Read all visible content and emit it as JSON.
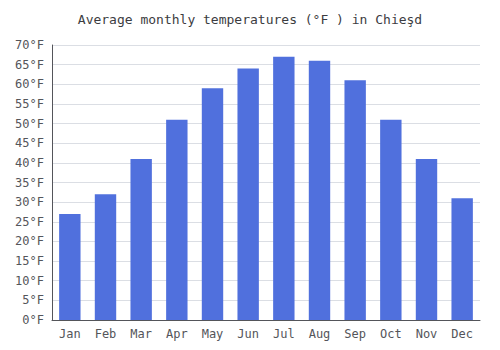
{
  "chart_data": {
    "type": "bar",
    "title": "Average monthly temperatures (°F ) in Chieşd",
    "categories": [
      "Jan",
      "Feb",
      "Mar",
      "Apr",
      "May",
      "Jun",
      "Jul",
      "Aug",
      "Sep",
      "Oct",
      "Nov",
      "Dec"
    ],
    "values": [
      27,
      32,
      41,
      51,
      59,
      64,
      67,
      66,
      61,
      51,
      41,
      31
    ],
    "ylim": [
      0,
      70
    ],
    "yticks": [
      {
        "value": 0,
        "label": "0°F"
      },
      {
        "value": 5,
        "label": "5°F"
      },
      {
        "value": 10,
        "label": "10°F"
      },
      {
        "value": 15,
        "label": "15°F"
      },
      {
        "value": 20,
        "label": "20°F"
      },
      {
        "value": 25,
        "label": "25°F"
      },
      {
        "value": 30,
        "label": "30°F"
      },
      {
        "value": 35,
        "label": "35°F"
      },
      {
        "value": 40,
        "label": "40°F"
      },
      {
        "value": 45,
        "label": "45°F"
      },
      {
        "value": 50,
        "label": "50°F"
      },
      {
        "value": 55,
        "label": "55°F"
      },
      {
        "value": 60,
        "label": "60°F"
      },
      {
        "value": 65,
        "label": "65°F"
      },
      {
        "value": 70,
        "label": "70°F"
      }
    ],
    "grid": true
  }
}
